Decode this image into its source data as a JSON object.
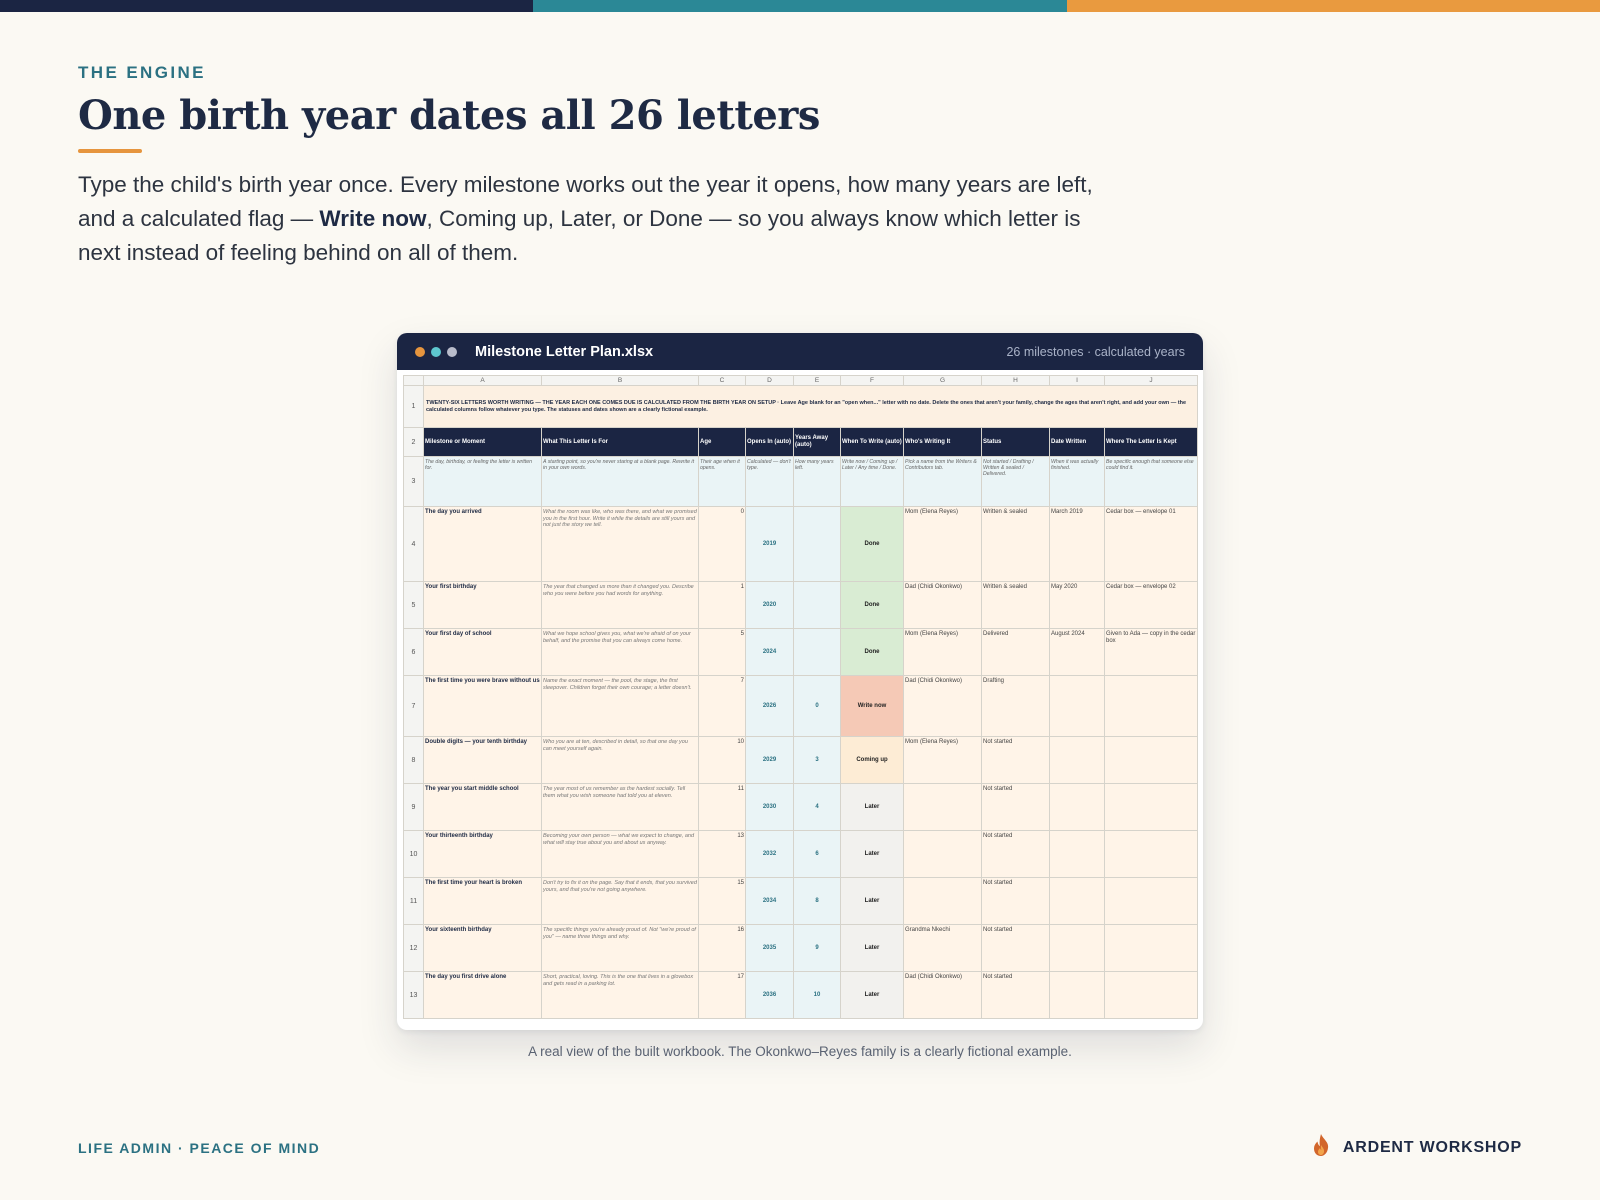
{
  "colors": {
    "navy": "#1b2543",
    "teal": "#2b7182",
    "orange": "#e6953e",
    "bg": "#fbf9f3"
  },
  "eyebrow": "THE ENGINE",
  "title": "One birth year dates all 26 letters",
  "lede": {
    "part1": "Type the child's birth year once. Every milestone works out the year it opens, how many years are left, and a calculated flag — ",
    "bold": "Write now",
    "part2": ", Coming up, Later, or Done — so you always know which letter is next instead of feeling behind on all of them."
  },
  "window": {
    "title": "Milestone Letter Plan.xlsx",
    "meta": "26 milestones · calculated years",
    "dot_colors": [
      "#e6953e",
      "#5ec7cf",
      "#b9bccb"
    ]
  },
  "sheet": {
    "columns": [
      "A",
      "B",
      "C",
      "D",
      "E",
      "F",
      "G",
      "H",
      "I",
      "J"
    ],
    "banner": "TWENTY-SIX LETTERS WORTH WRITING — THE YEAR EACH ONE COMES DUE IS CALCULATED FROM THE BIRTH YEAR ON SETUP · Leave Age blank for an \"open when...\" letter with no date. Delete the ones that aren't your family, change the ages that aren't right, and add your own — the calculated columns follow whatever you type. The statuses and dates shown are a clearly fictional example.",
    "headers": [
      "Milestone or Moment",
      "What This Letter Is For",
      "Age",
      "Opens In (auto)",
      "Years Away (auto)",
      "When To Write (auto)",
      "Who's Writing It",
      "Status",
      "Date Written",
      "Where The Letter Is Kept"
    ],
    "hints": [
      "The day, birthday, or feeling the letter is written for.",
      "A starting point, so you're never staring at a blank page. Rewrite it in your own words.",
      "Their age when it opens.",
      "Calculated — don't type.",
      "How many years left.",
      "Write now / Coming up / Later / Any time / Done.",
      "Pick a name from the Writers & Contributors tab.",
      "Not started / Drafting / Written & sealed / Delivered.",
      "When it was actually finished.",
      "Be specific enough that someone else could find it."
    ],
    "rows": [
      {
        "num": "4",
        "name": "The day you arrived",
        "desc": "What the room was like, who was there, and what we promised you in the first hour. Write it while the details are still yours and not just the story we tell.",
        "age": "0",
        "opens": "2019",
        "away": "",
        "flag": "Done",
        "flag_type": "done",
        "who": "Mom (Elena Reyes)",
        "status": "Written & sealed",
        "date": "March 2019",
        "kept": "Cedar box — envelope 01"
      },
      {
        "num": "5",
        "name": "Your first birthday",
        "desc": "The year that changed us more than it changed you. Describe who you were before you had words for anything.",
        "age": "1",
        "opens": "2020",
        "away": "",
        "flag": "Done",
        "flag_type": "done",
        "who": "Dad (Chidi Okonkwo)",
        "status": "Written & sealed",
        "date": "May 2020",
        "kept": "Cedar box — envelope 02"
      },
      {
        "num": "6",
        "name": "Your first day of school",
        "desc": "What we hope school gives you, what we're afraid of on your behalf, and the promise that you can always come home.",
        "age": "5",
        "opens": "2024",
        "away": "",
        "flag": "Done",
        "flag_type": "done",
        "who": "Mom (Elena Reyes)",
        "status": "Delivered",
        "date": "August 2024",
        "kept": "Given to Ada — copy in the cedar box"
      },
      {
        "num": "7",
        "name": "The first time you were brave without us",
        "desc": "Name the exact moment — the pool, the stage, the first sleepover. Children forget their own courage; a letter doesn't.",
        "age": "7",
        "opens": "2026",
        "away": "0",
        "flag": "Write now",
        "flag_type": "now",
        "who": "Dad (Chidi Okonkwo)",
        "status": "Drafting",
        "date": "",
        "kept": ""
      },
      {
        "num": "8",
        "name": "Double digits — your tenth birthday",
        "desc": "Who you are at ten, described in detail, so that one day you can meet yourself again.",
        "age": "10",
        "opens": "2029",
        "away": "3",
        "flag": "Coming up",
        "flag_type": "up",
        "who": "Mom (Elena Reyes)",
        "status": "Not started",
        "date": "",
        "kept": ""
      },
      {
        "num": "9",
        "name": "The year you start middle school",
        "desc": "The year most of us remember as the hardest socially. Tell them what you wish someone had told you at eleven.",
        "age": "11",
        "opens": "2030",
        "away": "4",
        "flag": "Later",
        "flag_type": "later",
        "who": "",
        "status": "Not started",
        "date": "",
        "kept": ""
      },
      {
        "num": "10",
        "name": "Your thirteenth birthday",
        "desc": "Becoming your own person — what we expect to change, and what will stay true about you and about us anyway.",
        "age": "13",
        "opens": "2032",
        "away": "6",
        "flag": "Later",
        "flag_type": "later",
        "who": "",
        "status": "Not started",
        "date": "",
        "kept": ""
      },
      {
        "num": "11",
        "name": "The first time your heart is broken",
        "desc": "Don't try to fix it on the page. Say that it ends, that you survived yours, and that you're not going anywhere.",
        "age": "15",
        "opens": "2034",
        "away": "8",
        "flag": "Later",
        "flag_type": "later",
        "who": "",
        "status": "Not started",
        "date": "",
        "kept": ""
      },
      {
        "num": "12",
        "name": "Your sixteenth birthday",
        "desc": "The specific things you're already proud of. Not \"we're proud of you\" — name three things and why.",
        "age": "16",
        "opens": "2035",
        "away": "9",
        "flag": "Later",
        "flag_type": "later",
        "who": "Grandma Nkechi",
        "status": "Not started",
        "date": "",
        "kept": ""
      },
      {
        "num": "13",
        "name": "The day you first drive alone",
        "desc": "Short, practical, loving. This is the one that lives in a glovebox and gets read in a parking lot.",
        "age": "17",
        "opens": "2036",
        "away": "10",
        "flag": "Later",
        "flag_type": "later",
        "who": "Dad (Chidi Okonkwo)",
        "status": "Not started",
        "date": "",
        "kept": ""
      }
    ]
  },
  "caption": "A real view of the built workbook. The Okonkwo–Reyes family is a clearly fictional example.",
  "footer": {
    "left": "LIFE ADMIN · PEACE OF MIND",
    "brand": "ARDENT WORKSHOP",
    "brand_icon": "flame-icon"
  }
}
